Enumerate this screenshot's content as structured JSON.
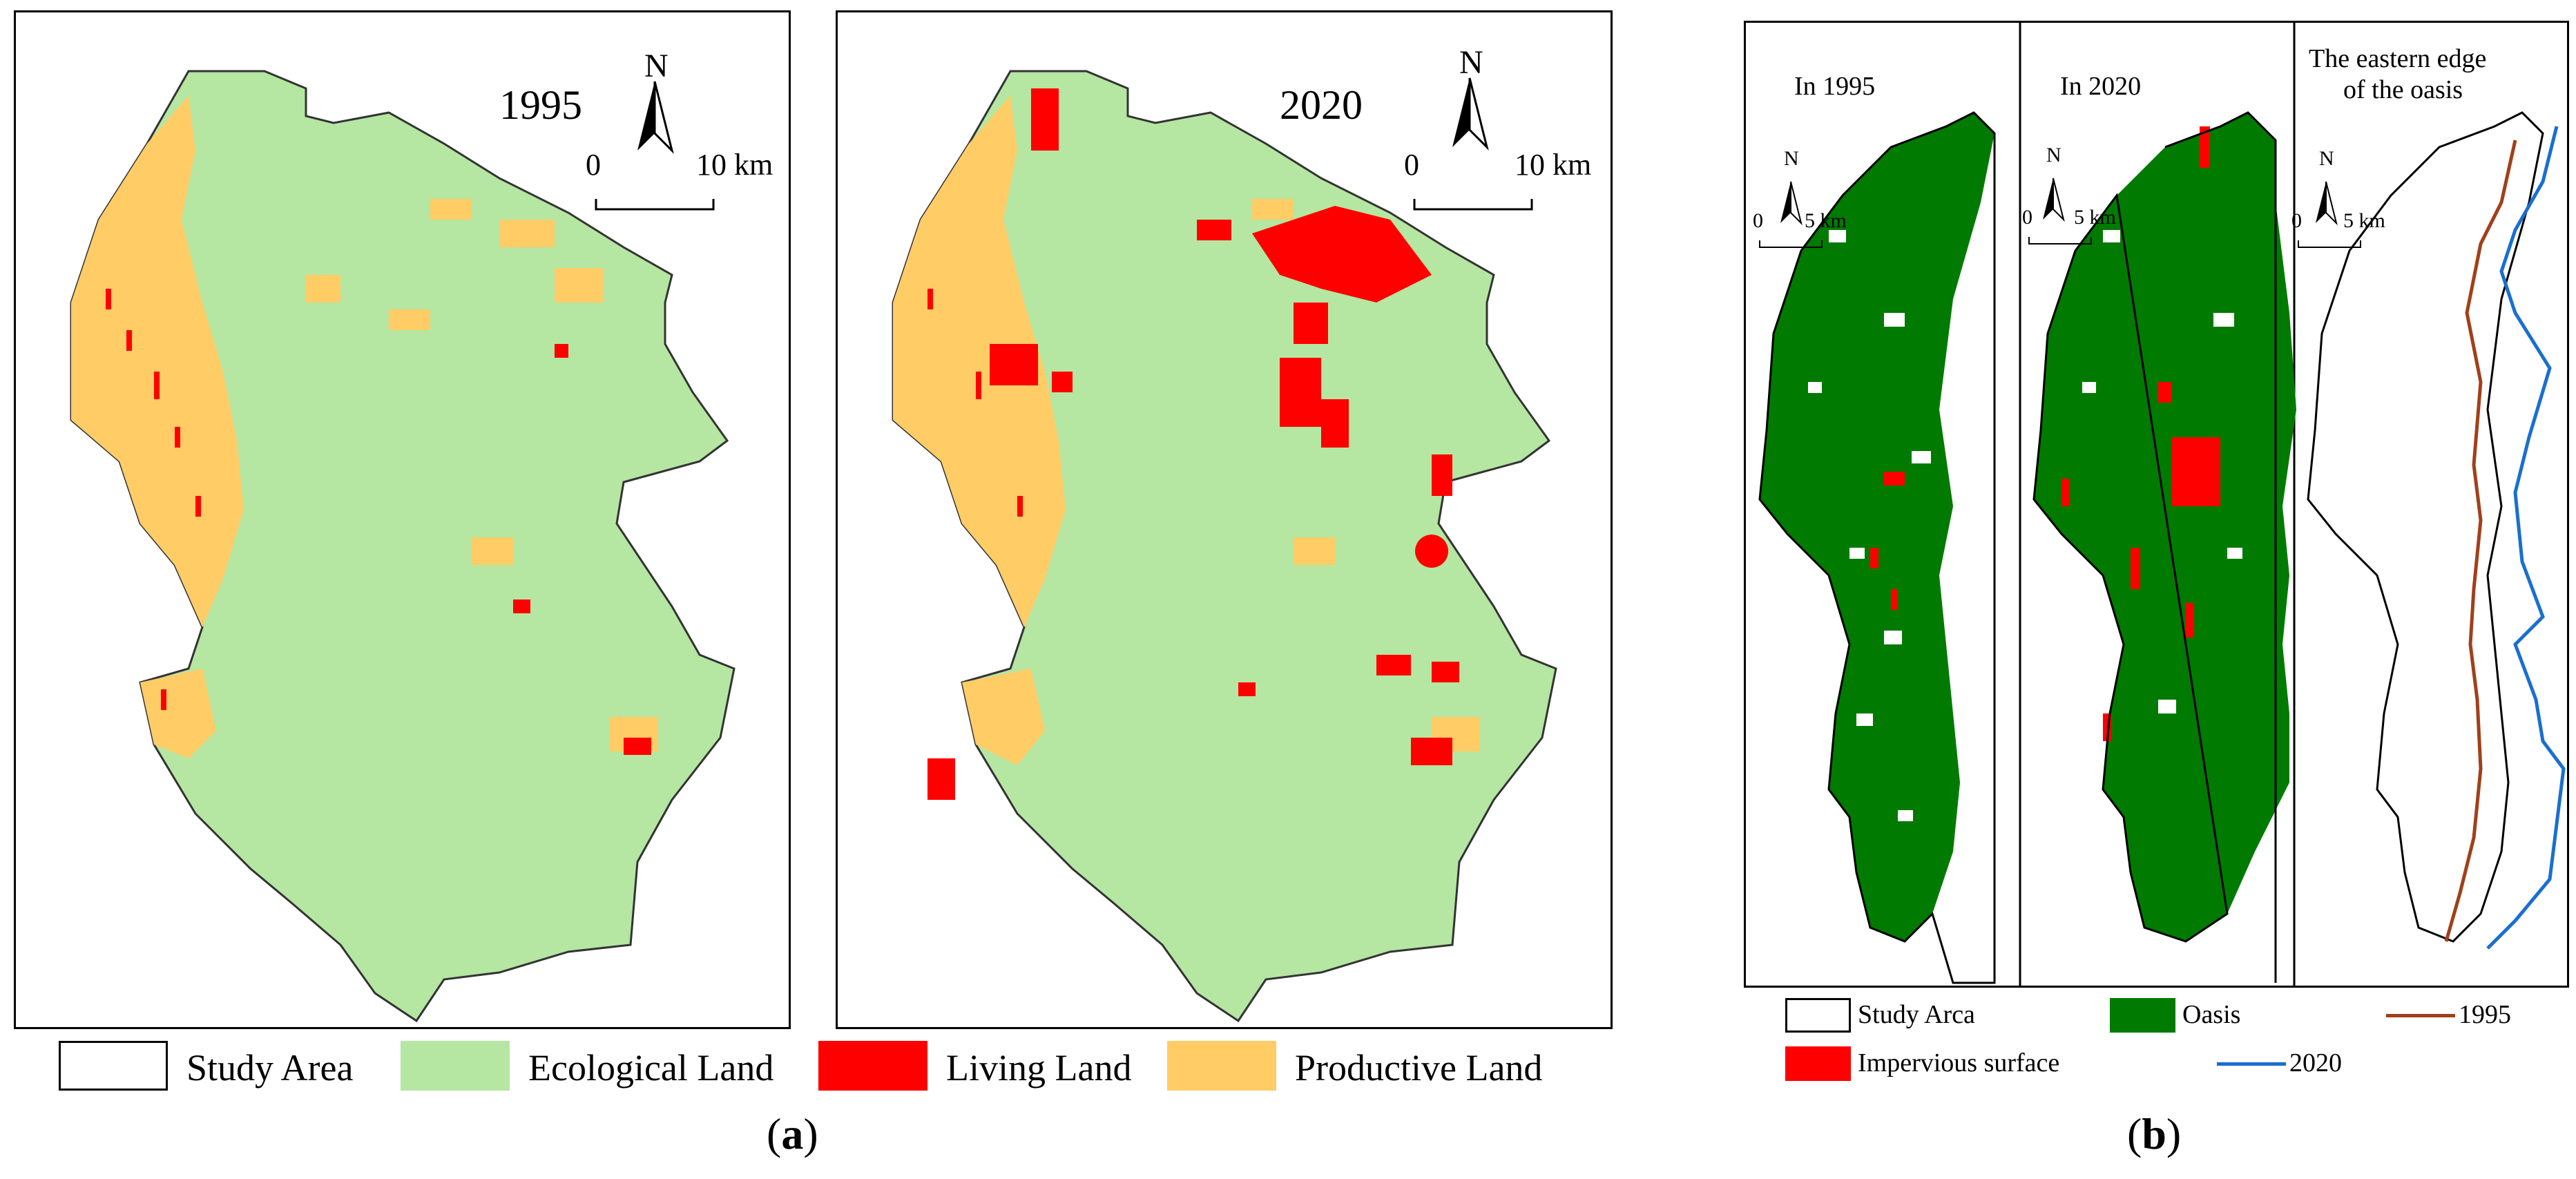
{
  "panel_a": {
    "label_open": "(",
    "label_letter": "a",
    "label_close": ")",
    "maps": [
      {
        "year": "1995",
        "north": "N",
        "scale_zero": "0",
        "scale_max": "10 km"
      },
      {
        "year": "2020",
        "north": "N",
        "scale_zero": "0",
        "scale_max": "10 km"
      }
    ],
    "legend": [
      {
        "label": "Study Area",
        "color": "#ffffff"
      },
      {
        "label": "Ecological Land",
        "color": "#b5e6a2"
      },
      {
        "label": "Living Land",
        "color": "#ff0000"
      },
      {
        "label": "Productive Land",
        "color": "#ffcc66"
      }
    ]
  },
  "panel_b": {
    "label_open": "(",
    "label_letter": "b",
    "label_close": ")",
    "maps": [
      {
        "title": "In 1995",
        "north": "N",
        "scale_zero": "0",
        "scale_max": "5 km"
      },
      {
        "title": "In 2020",
        "north": "N",
        "scale_zero": "0",
        "scale_max": "5 km"
      },
      {
        "title_line1": "The eastern edge",
        "title_line2": "of the oasis",
        "north": "N",
        "scale_zero": "0",
        "scale_max": "5 km"
      }
    ],
    "legend": [
      {
        "label": "Study Arca",
        "color": "#ffffff"
      },
      {
        "label": "Oasis",
        "color": "#007a00"
      },
      {
        "label": "1995",
        "color": "#a0401a"
      },
      {
        "label": "Impervious surface",
        "color": "#ff0000"
      },
      {
        "label": "2020",
        "color": "#1a6fd0"
      }
    ]
  }
}
